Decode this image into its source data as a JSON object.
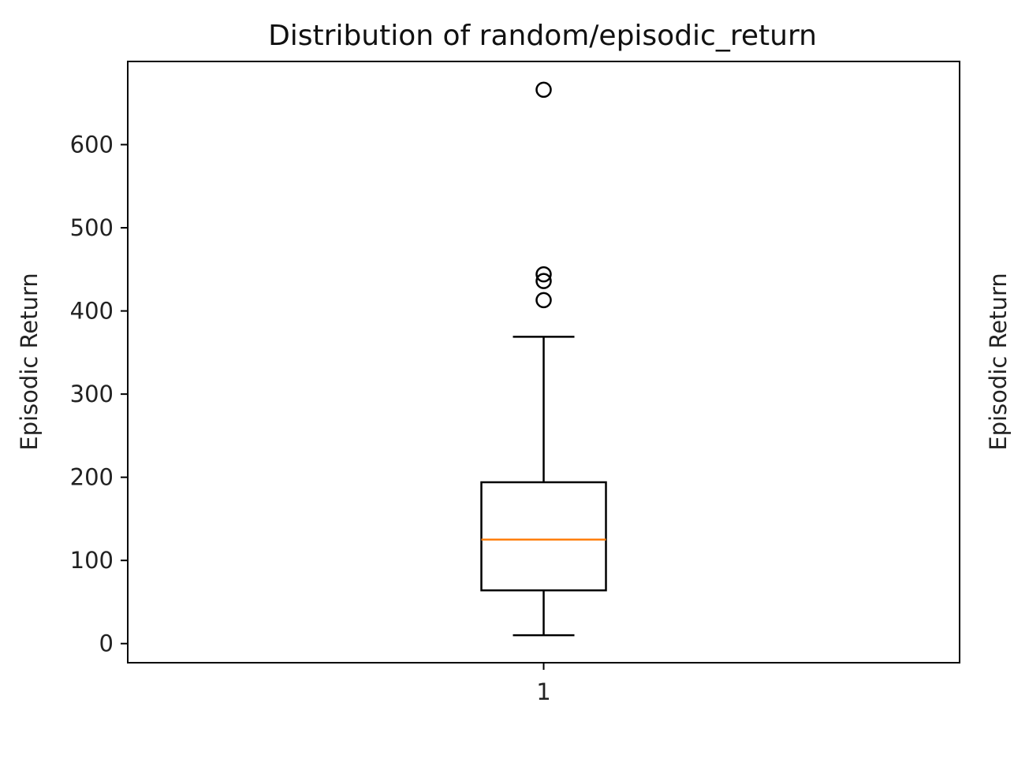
{
  "chart_data": {
    "type": "boxplot",
    "title": "Distribution of random/episodic_return",
    "ylabel": "Episodic Return",
    "ylabel_right": "Episodic Return",
    "categories": [
      "1"
    ],
    "ylim": [
      -23,
      700
    ],
    "yticks": [
      0,
      100,
      200,
      300,
      400,
      500,
      600
    ],
    "grid": false,
    "box": {
      "whisker_low": 10,
      "q1": 64,
      "median": 125,
      "q3": 194,
      "whisker_high": 369,
      "outliers": [
        413,
        436,
        444,
        666
      ]
    },
    "colors": {
      "median": "#ff7f0e",
      "lines": "#000000"
    }
  }
}
